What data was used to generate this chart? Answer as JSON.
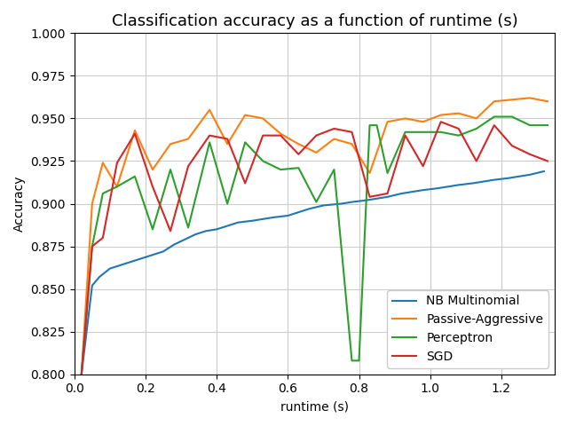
{
  "title": "Classification accuracy as a function of runtime (s)",
  "xlabel": "runtime (s)",
  "ylabel": "Accuracy",
  "ylim": [
    0.8,
    1.0
  ],
  "xlim": [
    0.0,
    1.35
  ],
  "legend_loc": "lower right",
  "bg_color": "white",
  "grid_color": "#cccccc",
  "series": {
    "NB Multinomial": {
      "color": "#1f77b4",
      "x": [
        0.02,
        0.05,
        0.07,
        0.1,
        0.13,
        0.16,
        0.19,
        0.22,
        0.25,
        0.28,
        0.31,
        0.34,
        0.37,
        0.4,
        0.43,
        0.46,
        0.5,
        0.53,
        0.56,
        0.6,
        0.63,
        0.66,
        0.7,
        0.75,
        0.78,
        0.82,
        0.85,
        0.88,
        0.92,
        0.95,
        0.98,
        1.02,
        1.05,
        1.08,
        1.12,
        1.15,
        1.18,
        1.22,
        1.25,
        1.28,
        1.32
      ],
      "y": [
        0.8,
        0.852,
        0.857,
        0.862,
        0.864,
        0.866,
        0.868,
        0.87,
        0.872,
        0.876,
        0.879,
        0.882,
        0.884,
        0.885,
        0.887,
        0.889,
        0.89,
        0.891,
        0.892,
        0.893,
        0.895,
        0.897,
        0.899,
        0.9,
        0.901,
        0.902,
        0.903,
        0.904,
        0.906,
        0.907,
        0.908,
        0.909,
        0.91,
        0.911,
        0.912,
        0.913,
        0.914,
        0.915,
        0.916,
        0.917,
        0.919
      ]
    },
    "Passive-Aggressive": {
      "color": "#ff7f0e",
      "x": [
        0.02,
        0.05,
        0.08,
        0.12,
        0.17,
        0.22,
        0.27,
        0.32,
        0.38,
        0.43,
        0.48,
        0.53,
        0.58,
        0.63,
        0.68,
        0.73,
        0.78,
        0.83,
        0.88,
        0.93,
        0.98,
        1.03,
        1.08,
        1.13,
        1.18,
        1.23,
        1.28,
        1.33
      ],
      "y": [
        0.8,
        0.9,
        0.924,
        0.91,
        0.943,
        0.92,
        0.935,
        0.938,
        0.955,
        0.935,
        0.952,
        0.95,
        0.941,
        0.935,
        0.93,
        0.938,
        0.935,
        0.918,
        0.948,
        0.95,
        0.948,
        0.952,
        0.953,
        0.95,
        0.96,
        0.961,
        0.962,
        0.96
      ]
    },
    "Perceptron": {
      "color": "#2ca02c",
      "x": [
        0.02,
        0.05,
        0.08,
        0.12,
        0.17,
        0.22,
        0.27,
        0.32,
        0.38,
        0.43,
        0.48,
        0.53,
        0.58,
        0.63,
        0.68,
        0.73,
        0.78,
        0.8,
        0.83,
        0.85,
        0.88,
        0.93,
        0.98,
        1.03,
        1.08,
        1.13,
        1.18,
        1.23,
        1.28,
        1.33
      ],
      "y": [
        0.8,
        0.875,
        0.906,
        0.91,
        0.916,
        0.885,
        0.92,
        0.886,
        0.936,
        0.9,
        0.936,
        0.925,
        0.92,
        0.921,
        0.901,
        0.92,
        0.808,
        0.808,
        0.946,
        0.946,
        0.918,
        0.942,
        0.942,
        0.942,
        0.94,
        0.944,
        0.951,
        0.951,
        0.946,
        0.946
      ]
    },
    "SGD": {
      "color": "#d62728",
      "x": [
        0.02,
        0.05,
        0.08,
        0.12,
        0.17,
        0.22,
        0.27,
        0.32,
        0.38,
        0.43,
        0.48,
        0.53,
        0.58,
        0.63,
        0.68,
        0.73,
        0.78,
        0.83,
        0.88,
        0.93,
        0.98,
        1.03,
        1.08,
        1.13,
        1.18,
        1.23,
        1.28,
        1.33
      ],
      "y": [
        0.8,
        0.875,
        0.88,
        0.924,
        0.941,
        0.91,
        0.884,
        0.922,
        0.94,
        0.938,
        0.912,
        0.94,
        0.94,
        0.929,
        0.94,
        0.944,
        0.942,
        0.904,
        0.906,
        0.94,
        0.922,
        0.948,
        0.944,
        0.925,
        0.946,
        0.934,
        0.929,
        0.925
      ]
    }
  }
}
